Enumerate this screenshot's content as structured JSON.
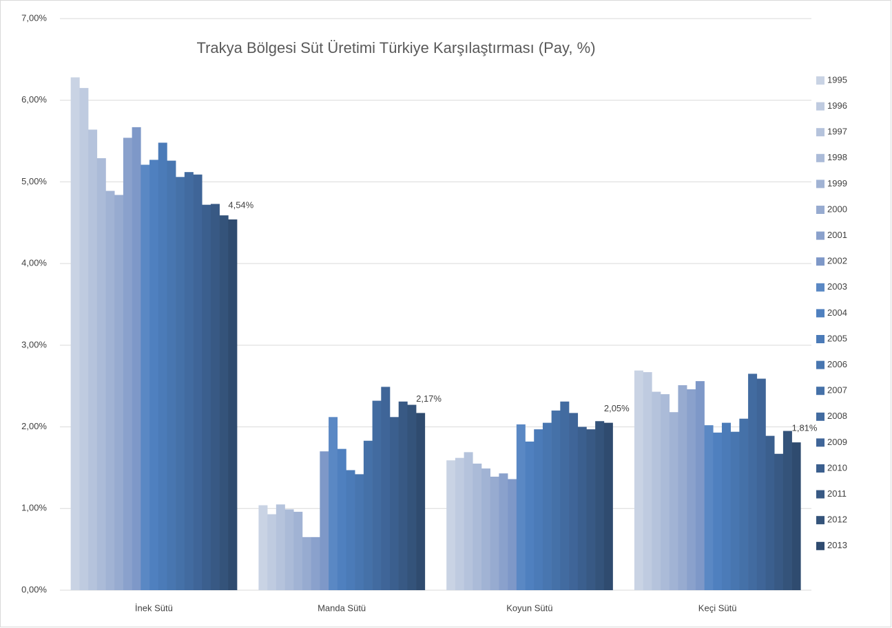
{
  "chart_data": {
    "type": "bar",
    "title": "Trakya Bölgesi Süt Üretimi Türkiye Karşılaştırması (Pay, %)",
    "categories": [
      "İnek Sütü",
      "Manda Sütü",
      "Koyun Sütü",
      "Keçi Sütü"
    ],
    "ylim": [
      0,
      7
    ],
    "yticks": [
      {
        "value": 0,
        "label": "0,00%"
      },
      {
        "value": 1,
        "label": "1,00%"
      },
      {
        "value": 2,
        "label": "2,00%"
      },
      {
        "value": 3,
        "label": "3,00%"
      },
      {
        "value": 4,
        "label": "4,00%"
      },
      {
        "value": 5,
        "label": "5,00%"
      },
      {
        "value": 6,
        "label": "6,00%"
      },
      {
        "value": 7,
        "label": "7,00%"
      }
    ],
    "grid": true,
    "legend": "right",
    "series": [
      {
        "name": "1995",
        "color": "#c9d3e4",
        "values": [
          6.28,
          1.04,
          1.59,
          2.69
        ]
      },
      {
        "name": "1996",
        "color": "#bfcbe0",
        "values": [
          6.15,
          0.93,
          1.62,
          2.67
        ]
      },
      {
        "name": "1997",
        "color": "#b5c3dc",
        "values": [
          5.64,
          1.05,
          1.69,
          2.43
        ]
      },
      {
        "name": "1998",
        "color": "#abbbd8",
        "values": [
          5.29,
          0.99,
          1.55,
          2.4
        ]
      },
      {
        "name": "1999",
        "color": "#a1b3d4",
        "values": [
          4.89,
          0.96,
          1.49,
          2.18
        ]
      },
      {
        "name": "2000",
        "color": "#97abd0",
        "values": [
          4.84,
          0.65,
          1.39,
          2.51
        ]
      },
      {
        "name": "2001",
        "color": "#8aa1cc",
        "values": [
          5.54,
          0.65,
          1.43,
          2.46
        ]
      },
      {
        "name": "2002",
        "color": "#7e98c8",
        "values": [
          5.67,
          1.7,
          1.36,
          2.56
        ]
      },
      {
        "name": "2003",
        "color": "#5a88c4",
        "values": [
          5.21,
          2.12,
          2.03,
          2.02
        ]
      },
      {
        "name": "2004",
        "color": "#4f80bf",
        "values": [
          5.27,
          1.73,
          1.82,
          1.93
        ]
      },
      {
        "name": "2005",
        "color": "#4b7bb8",
        "values": [
          5.48,
          1.47,
          1.97,
          2.05
        ]
      },
      {
        "name": "2006",
        "color": "#4876b0",
        "values": [
          5.26,
          1.42,
          2.05,
          1.94
        ]
      },
      {
        "name": "2007",
        "color": "#4571a8",
        "values": [
          5.06,
          1.83,
          2.2,
          2.1
        ]
      },
      {
        "name": "2008",
        "color": "#426ba0",
        "values": [
          5.12,
          2.32,
          2.31,
          2.65
        ]
      },
      {
        "name": "2009",
        "color": "#3f6598",
        "values": [
          5.09,
          2.49,
          2.17,
          2.59
        ]
      },
      {
        "name": "2010",
        "color": "#3b5f8e",
        "values": [
          4.72,
          2.12,
          2.0,
          1.89
        ]
      },
      {
        "name": "2011",
        "color": "#385984",
        "values": [
          4.73,
          2.31,
          1.97,
          1.67
        ]
      },
      {
        "name": "2012",
        "color": "#34537a",
        "values": [
          4.59,
          2.27,
          2.07,
          1.95
        ]
      },
      {
        "name": "2013",
        "color": "#2f4b6f",
        "values": [
          4.54,
          2.17,
          2.05,
          1.81
        ],
        "value_labels": [
          "4,54%",
          "2,17%",
          "2,05%",
          "1,81%"
        ]
      }
    ]
  }
}
